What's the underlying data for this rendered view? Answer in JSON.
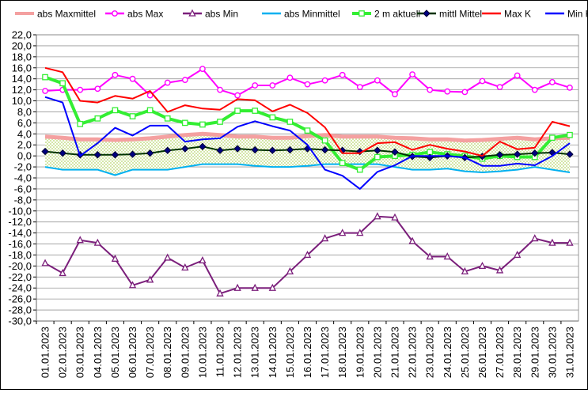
{
  "chart_data": {
    "type": "line",
    "x": [
      "01.01.2023",
      "02.01.2023",
      "03.01.2023",
      "04.01.2023",
      "05.01.2023",
      "06.01.2023",
      "07.01.2023",
      "08.01.2023",
      "09.01.2023",
      "10.01.2023",
      "11.01.2023",
      "12.01.2023",
      "13.01.2023",
      "14.01.2023",
      "15.01.2023",
      "16.01.2023",
      "17.01.2023",
      "18.01.2023",
      "19.01.2023",
      "20.01.2023",
      "21.01.2023",
      "22.01.2023",
      "23.01.2023",
      "24.01.2023",
      "25.01.2023",
      "26.01.2023",
      "27.01.2023",
      "28.01.2023",
      "29.01.2023",
      "30.01.2023",
      "31.01.2023"
    ],
    "ylim": [
      -30,
      22
    ],
    "ytick_step": 2,
    "grid": true,
    "legend_position": "top",
    "band": {
      "upper": [
        3.5,
        3.3,
        3.0,
        3.0,
        2.9,
        3.0,
        3.2,
        3.5,
        3.8,
        4.0,
        3.8,
        3.5,
        3.5,
        3.3,
        3.3,
        3.6,
        3.8,
        3.5,
        3.5,
        3.5,
        3.3,
        3.2,
        3.0,
        3.0,
        2.8,
        2.9,
        3.1,
        3.3,
        3.0,
        3.2,
        3.3
      ],
      "lower": [
        -2.0,
        -2.5,
        -2.5,
        -2.5,
        -3.5,
        -2.5,
        -2.5,
        -2.5,
        -2.0,
        -1.5,
        -1.5,
        -1.5,
        -1.8,
        -2.0,
        -2.0,
        -1.8,
        -1.5,
        -1.5,
        -1.5,
        -1.5,
        -2.0,
        -2.5,
        -2.5,
        -2.3,
        -2.8,
        -3.0,
        -2.8,
        -2.5,
        -2.0,
        -2.5,
        -3.0
      ],
      "color": "#9bbb59"
    },
    "series": [
      {
        "name": "abs Maxmittel",
        "color": "#f4a0a0",
        "marker": "none",
        "width": 5,
        "values": [
          3.5,
          3.3,
          3.0,
          3.0,
          2.9,
          3.0,
          3.2,
          3.5,
          3.8,
          4.0,
          3.8,
          3.5,
          3.5,
          3.3,
          3.3,
          3.6,
          3.8,
          3.5,
          3.5,
          3.5,
          3.3,
          3.2,
          3.0,
          3.0,
          2.8,
          2.9,
          3.1,
          3.3,
          3.0,
          3.2,
          3.3
        ]
      },
      {
        "name": "abs Max",
        "color": "#ff00ff",
        "marker": "circle",
        "width": 2,
        "values": [
          11.8,
          12.0,
          12.0,
          12.2,
          14.7,
          14.0,
          11.0,
          13.3,
          13.8,
          15.8,
          12.0,
          11.0,
          12.8,
          12.8,
          14.2,
          13.0,
          13.7,
          14.7,
          12.5,
          13.7,
          11.2,
          14.8,
          12.0,
          11.7,
          11.6,
          13.6,
          12.5,
          14.6,
          12.0,
          13.4,
          12.4
        ]
      },
      {
        "name": "abs Min",
        "color": "#7b1f7b",
        "marker": "triangle",
        "width": 2,
        "values": [
          -19.5,
          -21.3,
          -15.3,
          -15.8,
          -18.7,
          -23.5,
          -22.5,
          -18.5,
          -20.3,
          -19.0,
          -25.0,
          -24.0,
          -24.0,
          -24.0,
          -21.0,
          -18.0,
          -15.0,
          -14.0,
          -14.0,
          -11.0,
          -11.2,
          -15.5,
          -18.3,
          -18.3,
          -21.0,
          -20.0,
          -20.8,
          -18.0,
          -15.0,
          -15.8,
          -15.8
        ]
      },
      {
        "name": "abs Minmittel",
        "color": "#00b0f0",
        "marker": "none",
        "width": 2,
        "values": [
          -2.0,
          -2.5,
          -2.5,
          -2.5,
          -3.5,
          -2.5,
          -2.5,
          -2.5,
          -2.0,
          -1.5,
          -1.5,
          -1.5,
          -1.8,
          -2.0,
          -2.0,
          -1.8,
          -1.5,
          -1.5,
          -1.5,
          -1.5,
          -2.0,
          -2.5,
          -2.5,
          -2.3,
          -2.8,
          -3.0,
          -2.8,
          -2.5,
          -2.0,
          -2.5,
          -3.0
        ]
      },
      {
        "name": "2 m aktuell",
        "color": "#33ee33",
        "marker": "square",
        "width": 4,
        "values": [
          14.3,
          13.2,
          5.8,
          6.8,
          8.3,
          7.2,
          8.3,
          6.8,
          6.0,
          5.7,
          6.2,
          8.2,
          8.2,
          7.0,
          6.2,
          4.6,
          2.8,
          -1.3,
          -2.5,
          -0.2,
          0.0,
          0.2,
          0.7,
          0.3,
          0.0,
          -0.5,
          0.0,
          -0.2,
          -0.2,
          3.3,
          3.8
        ]
      },
      {
        "name": "mittl Mittel",
        "color": "#003300",
        "marker": "diamond",
        "width": 2,
        "values": [
          0.8,
          0.5,
          0.2,
          0.2,
          0.2,
          0.3,
          0.5,
          1.0,
          1.3,
          1.7,
          1.0,
          1.3,
          1.1,
          1.0,
          1.1,
          1.3,
          1.1,
          1.0,
          0.8,
          1.0,
          0.7,
          -0.1,
          -0.3,
          0.0,
          -0.3,
          -0.1,
          0.2,
          0.3,
          0.5,
          0.6,
          0.3
        ]
      },
      {
        "name": "Max K",
        "color": "#ff0000",
        "marker": "none",
        "width": 2,
        "values": [
          16.0,
          15.2,
          10.0,
          9.7,
          10.9,
          10.4,
          11.8,
          8.0,
          9.2,
          8.6,
          8.4,
          10.3,
          10.1,
          8.1,
          9.3,
          7.8,
          5.2,
          0.5,
          0.5,
          2.3,
          2.5,
          1.1,
          2.0,
          1.3,
          0.8,
          0.0,
          2.6,
          1.2,
          1.5,
          6.2,
          5.4
        ]
      },
      {
        "name": "Min K",
        "color": "#0000ff",
        "marker": "none",
        "width": 2,
        "values": [
          10.7,
          9.7,
          0.0,
          2.3,
          5.1,
          3.7,
          5.5,
          5.5,
          2.6,
          3.0,
          3.2,
          5.3,
          6.3,
          5.4,
          4.6,
          2.0,
          -2.5,
          -3.6,
          -6.0,
          -2.9,
          -1.7,
          0.0,
          0.0,
          0.0,
          -0.3,
          -1.8,
          -1.8,
          -1.4,
          -1.7,
          0.0,
          2.3
        ]
      }
    ]
  }
}
